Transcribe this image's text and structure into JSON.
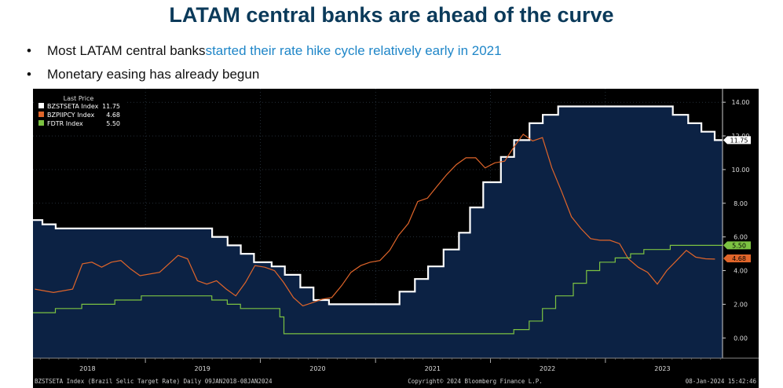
{
  "slide": {
    "title": "LATAM central banks are ahead of the curve",
    "bullets": [
      {
        "text": "Most LATAM central banks ",
        "highlight": "started their rate hike cycle relatively early in 2021"
      },
      {
        "text": "Monetary easing has already begun",
        "highlight": ""
      }
    ]
  },
  "chart_data": {
    "type": "line",
    "legend": {
      "header": "Last Price",
      "placement": "top-left",
      "entries": [
        {
          "name": "BZSTSETA Index",
          "value": "11.75",
          "color": "#ffffff"
        },
        {
          "name": "BZPIIPCY Index",
          "value": "4.68",
          "color": "#e0652a"
        },
        {
          "name": "FDTR Index",
          "value": "5.50",
          "color": "#7cc242"
        }
      ]
    },
    "x_labels": [
      "2018",
      "2019",
      "2020",
      "2021",
      "2022",
      "2023"
    ],
    "xlim": [
      "2018-01-09",
      "2024-01-08"
    ],
    "ylim": [
      -1.2,
      14.8
    ],
    "y_ticks": [
      "0.00",
      "2.00",
      "4.00",
      "6.00",
      "8.00",
      "10.00",
      "12.00",
      "14.00"
    ],
    "grid": true,
    "series": [
      {
        "name": "BZSTSETA Index",
        "color": "#ffffff",
        "step": true,
        "last_label": "11.75",
        "points": [
          [
            "2018-01-09",
            7.0
          ],
          [
            "2018-02-08",
            6.75
          ],
          [
            "2018-03-22",
            6.5
          ],
          [
            "2019-08-01",
            6.0
          ],
          [
            "2019-09-19",
            5.5
          ],
          [
            "2019-10-31",
            5.0
          ],
          [
            "2019-12-12",
            4.5
          ],
          [
            "2020-02-06",
            4.25
          ],
          [
            "2020-03-19",
            3.75
          ],
          [
            "2020-05-07",
            3.0
          ],
          [
            "2020-06-18",
            2.25
          ],
          [
            "2020-08-06",
            2.0
          ],
          [
            "2021-03-18",
            2.75
          ],
          [
            "2021-05-06",
            3.5
          ],
          [
            "2021-06-17",
            4.25
          ],
          [
            "2021-08-05",
            5.25
          ],
          [
            "2021-09-23",
            6.25
          ],
          [
            "2021-10-28",
            7.75
          ],
          [
            "2021-12-09",
            9.25
          ],
          [
            "2022-02-03",
            10.75
          ],
          [
            "2022-03-17",
            11.75
          ],
          [
            "2022-05-05",
            12.75
          ],
          [
            "2022-06-16",
            13.25
          ],
          [
            "2022-08-04",
            13.75
          ],
          [
            "2023-08-03",
            13.25
          ],
          [
            "2023-09-21",
            12.75
          ],
          [
            "2023-11-02",
            12.25
          ],
          [
            "2023-12-14",
            11.75
          ],
          [
            "2024-01-08",
            11.75
          ]
        ]
      },
      {
        "name": "BZPIIPCY Index",
        "color": "#e0652a",
        "step": false,
        "last_label": "4.68",
        "points": [
          [
            "2018-01-15",
            2.9
          ],
          [
            "2018-03-15",
            2.7
          ],
          [
            "2018-05-15",
            2.9
          ],
          [
            "2018-06-15",
            4.4
          ],
          [
            "2018-07-15",
            4.5
          ],
          [
            "2018-08-15",
            4.2
          ],
          [
            "2018-09-15",
            4.5
          ],
          [
            "2018-10-15",
            4.6
          ],
          [
            "2018-11-15",
            4.1
          ],
          [
            "2018-12-15",
            3.7
          ],
          [
            "2019-02-15",
            3.9
          ],
          [
            "2019-04-15",
            4.9
          ],
          [
            "2019-05-15",
            4.7
          ],
          [
            "2019-06-15",
            3.4
          ],
          [
            "2019-07-15",
            3.2
          ],
          [
            "2019-08-15",
            3.4
          ],
          [
            "2019-09-15",
            2.9
          ],
          [
            "2019-10-15",
            2.5
          ],
          [
            "2019-11-15",
            3.3
          ],
          [
            "2019-12-15",
            4.3
          ],
          [
            "2020-01-15",
            4.2
          ],
          [
            "2020-02-15",
            4.0
          ],
          [
            "2020-03-15",
            3.3
          ],
          [
            "2020-04-15",
            2.4
          ],
          [
            "2020-05-15",
            1.9
          ],
          [
            "2020-06-15",
            2.1
          ],
          [
            "2020-07-15",
            2.3
          ],
          [
            "2020-08-15",
            2.4
          ],
          [
            "2020-09-15",
            3.1
          ],
          [
            "2020-10-15",
            3.9
          ],
          [
            "2020-11-15",
            4.3
          ],
          [
            "2020-12-15",
            4.5
          ],
          [
            "2021-01-15",
            4.6
          ],
          [
            "2021-02-15",
            5.2
          ],
          [
            "2021-03-15",
            6.1
          ],
          [
            "2021-04-15",
            6.8
          ],
          [
            "2021-05-15",
            8.1
          ],
          [
            "2021-06-15",
            8.3
          ],
          [
            "2021-07-15",
            9.0
          ],
          [
            "2021-08-15",
            9.7
          ],
          [
            "2021-09-15",
            10.3
          ],
          [
            "2021-10-15",
            10.7
          ],
          [
            "2021-11-15",
            10.7
          ],
          [
            "2021-12-15",
            10.1
          ],
          [
            "2022-01-15",
            10.4
          ],
          [
            "2022-02-15",
            10.5
          ],
          [
            "2022-03-15",
            11.3
          ],
          [
            "2022-04-15",
            12.1
          ],
          [
            "2022-05-15",
            11.7
          ],
          [
            "2022-06-15",
            11.9
          ],
          [
            "2022-07-15",
            10.1
          ],
          [
            "2022-08-15",
            8.7
          ],
          [
            "2022-09-15",
            7.2
          ],
          [
            "2022-10-15",
            6.5
          ],
          [
            "2022-11-15",
            5.9
          ],
          [
            "2022-12-15",
            5.8
          ],
          [
            "2023-01-15",
            5.8
          ],
          [
            "2023-02-15",
            5.6
          ],
          [
            "2023-03-15",
            4.7
          ],
          [
            "2023-04-15",
            4.2
          ],
          [
            "2023-05-15",
            3.9
          ],
          [
            "2023-06-15",
            3.2
          ],
          [
            "2023-07-15",
            4.0
          ],
          [
            "2023-08-15",
            4.6
          ],
          [
            "2023-09-15",
            5.2
          ],
          [
            "2023-10-15",
            4.8
          ],
          [
            "2023-11-15",
            4.7
          ],
          [
            "2023-12-15",
            4.68
          ]
        ]
      },
      {
        "name": "FDTR Index",
        "color": "#7cc242",
        "step": true,
        "last_label": "5.50",
        "points": [
          [
            "2018-01-09",
            1.5
          ],
          [
            "2018-03-21",
            1.75
          ],
          [
            "2018-06-13",
            2.0
          ],
          [
            "2018-09-26",
            2.25
          ],
          [
            "2018-12-19",
            2.5
          ],
          [
            "2019-07-31",
            2.25
          ],
          [
            "2019-09-18",
            2.0
          ],
          [
            "2019-10-30",
            1.75
          ],
          [
            "2020-03-03",
            1.25
          ],
          [
            "2020-03-16",
            0.25
          ],
          [
            "2022-03-16",
            0.5
          ],
          [
            "2022-05-04",
            1.0
          ],
          [
            "2022-06-15",
            1.75
          ],
          [
            "2022-07-27",
            2.5
          ],
          [
            "2022-09-21",
            3.25
          ],
          [
            "2022-11-02",
            4.0
          ],
          [
            "2022-12-14",
            4.5
          ],
          [
            "2023-02-01",
            4.75
          ],
          [
            "2023-03-22",
            5.0
          ],
          [
            "2023-05-03",
            5.25
          ],
          [
            "2023-07-26",
            5.5
          ],
          [
            "2024-01-08",
            5.5
          ]
        ]
      }
    ]
  },
  "footer": {
    "left": "BZSTSETA Index (Brazil Selic Target Rate)  Daily 09JAN2018-08JAN2024",
    "center": "Copyright© 2024 Bloomberg Finance L.P.",
    "right": "08-Jan-2024 15:42:46"
  }
}
